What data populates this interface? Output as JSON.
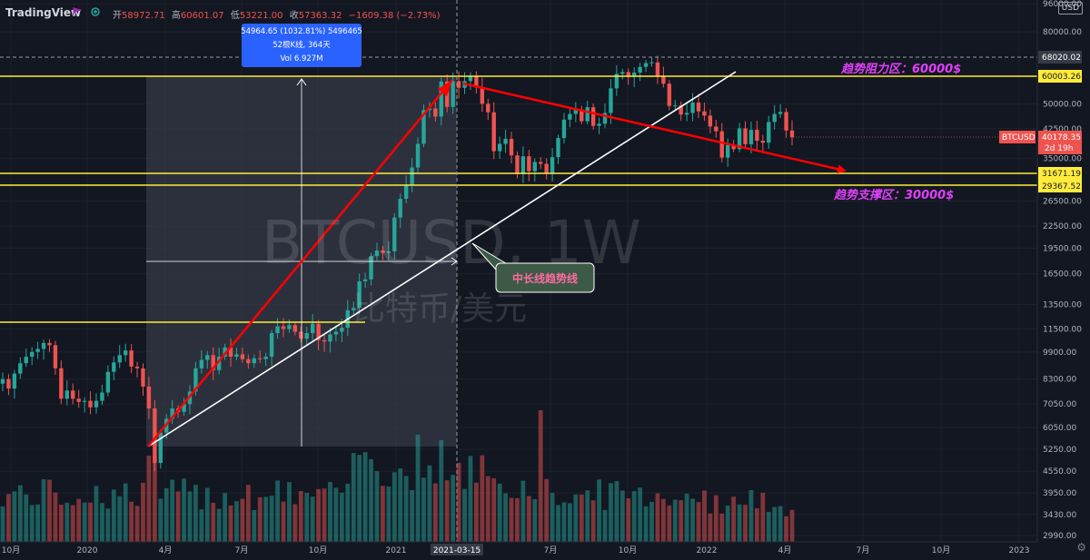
{
  "header": {
    "brand": "TradingView",
    "ohlc": [
      {
        "key": "开",
        "value": "58972.71"
      },
      {
        "key": "高",
        "value": "60601.07"
      },
      {
        "key": "低",
        "value": "53221.00"
      },
      {
        "key": "收",
        "value": "57363.32"
      }
    ],
    "change": "−1609.38 (−2.73%)",
    "currency": "USD"
  },
  "watermark": {
    "symbol": "BTCUSD, 1W",
    "name": "比特币/美元"
  },
  "measure_box": {
    "line1": "54964.65 (1032.81%) 5496465",
    "line2": "52根K线, 364天",
    "line3": "Vol 6.927M"
  },
  "annotations": {
    "resistance": "趋势阻力区：60000$",
    "support": "趋势支撑区：30000$",
    "trendline": "中长线趋势线"
  },
  "price_tags": {
    "crosshair": "68020.02",
    "resistance": "60003.26",
    "current_symbol": "BTCUSD",
    "current_price": "40178.35",
    "countdown": "2d 19h",
    "support_upper": "31671.19",
    "support_lower": "29367.52"
  },
  "x_highlight": "2021-03-15",
  "chart_data": {
    "type": "candlestick",
    "symbol": "BTCUSD",
    "interval": "1W",
    "y_scale": "log",
    "y_ticks": [
      "96000.00",
      "80000.00",
      "68020.02",
      "60003.26",
      "50000.00",
      "42500.00",
      "40178.35",
      "35000.00",
      "31671.19",
      "29367.52",
      "26500.00",
      "22500.00",
      "19500.00",
      "16500.00",
      "13500.00",
      "11500.00",
      "9900.00",
      "8300.00",
      "7050.00",
      "6050.00",
      "5250.00",
      "4550.00",
      "3950.00",
      "3430.00",
      "2990.00"
    ],
    "x_ticks": [
      "10月",
      "2020",
      "4月",
      "7月",
      "10月",
      "2021",
      "2021-03-15",
      "7月",
      "10月",
      "2022",
      "4月",
      "7月",
      "10月",
      "2023"
    ],
    "horizontal_levels": [
      60003.26,
      31671.19,
      29367.52,
      11900
    ],
    "candles_close": [
      8300,
      7800,
      8600,
      9200,
      9600,
      9900,
      10100,
      10500,
      10350,
      8900,
      7300,
      7700,
      7300,
      7150,
      7200,
      6900,
      7200,
      7600,
      8700,
      9250,
      9700,
      10000,
      9000,
      8900,
      7900,
      6850,
      4800,
      5850,
      6400,
      6850,
      6700,
      7050,
      7650,
      8900,
      9400,
      9700,
      8800,
      9600,
      10200,
      9600,
      9750,
      9450,
      9200,
      9500,
      9450,
      9600,
      11200,
      11700,
      11500,
      11800,
      11300,
      10800,
      11200,
      11900,
      10700,
      10600,
      11100,
      11300,
      11600,
      13000,
      13200,
      15700,
      15900,
      18500,
      19200,
      18900,
      19100,
      23800,
      26900,
      29500,
      33000,
      38500,
      48000,
      48500,
      46000,
      57800,
      49000,
      58000,
      55500,
      58000,
      59800,
      55600,
      50000,
      47300,
      36700,
      38500,
      39800,
      35700,
      31600,
      35500,
      32200,
      34200,
      33800,
      31700,
      35300,
      40000,
      45100,
      46800,
      48200,
      44600,
      48900,
      43300,
      43900,
      47100,
      55300,
      60800,
      61500,
      59700,
      61300,
      63600,
      65200,
      65500,
      59700,
      57000,
      49300,
      49500,
      46600,
      47100,
      50400,
      47600,
      46300,
      43100,
      41800,
      35200,
      38200,
      37200,
      42600,
      38400,
      42200,
      39300,
      38800,
      44400,
      46800,
      47400,
      42000,
      40178
    ]
  }
}
